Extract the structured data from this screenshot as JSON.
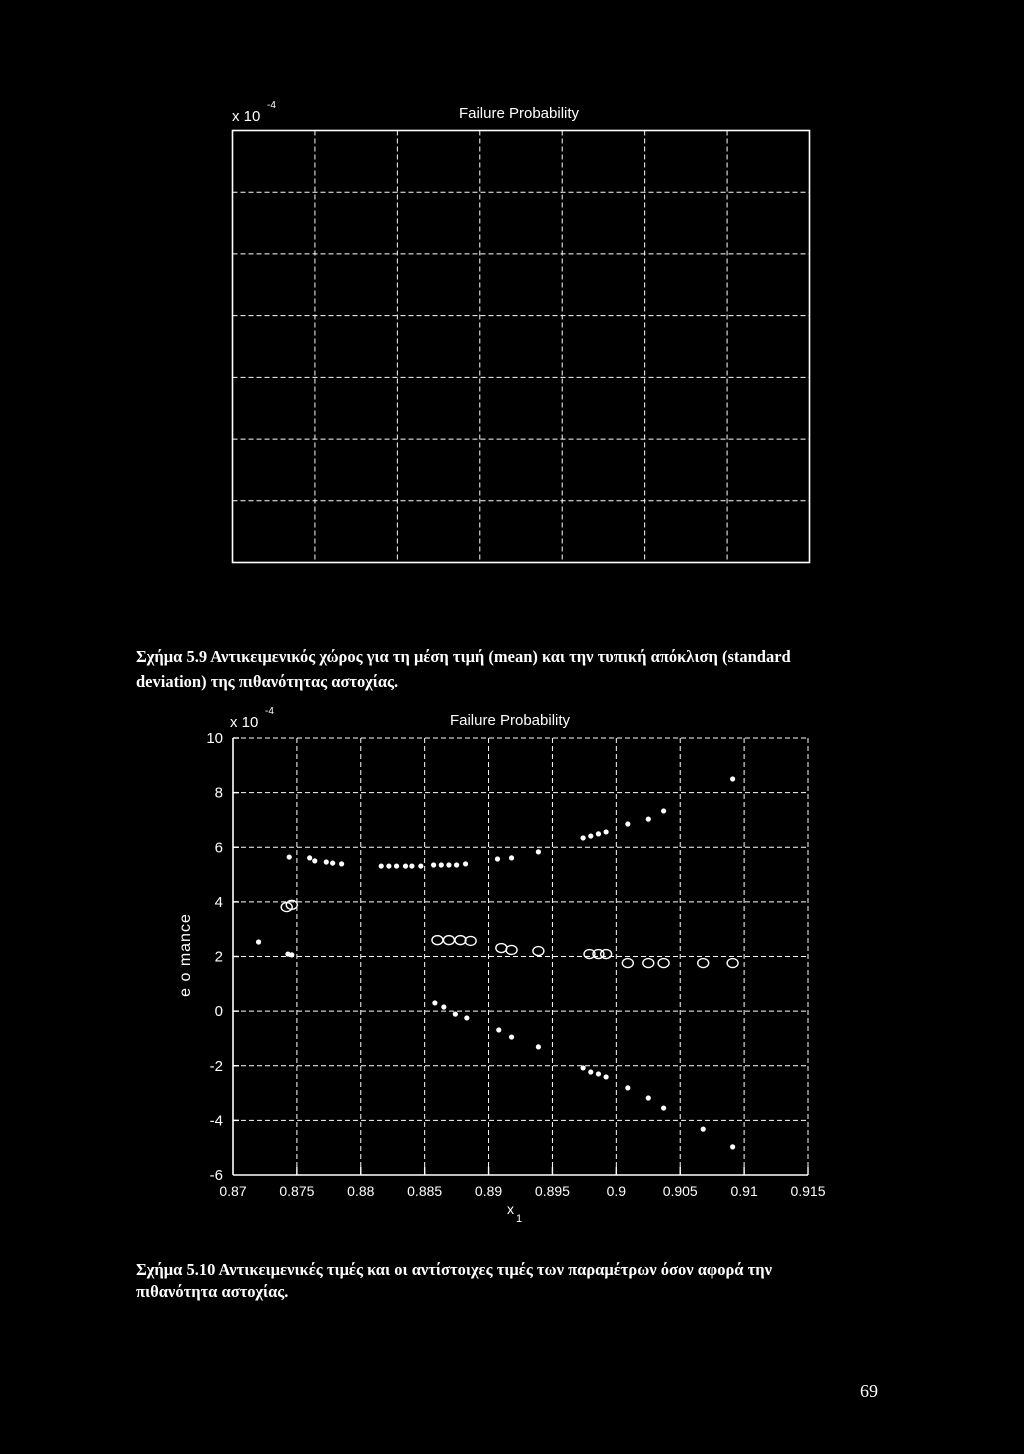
{
  "colors": {
    "background": "#000000",
    "foreground": "#ffffff"
  },
  "page_number": "69",
  "figures": [
    {
      "caption_lines": [
        "Σχήμα 5.9 Αντικειμενικός χώρος για τη μέση τιμή (mean) και την τυπική απόκλιση (standard",
        "deviation) της πιθανότητας αστοχίας."
      ]
    },
    {
      "caption_lines": [
        "Σχήμα 5.10 Αντικειμενικές τιμές και οι αντίστοιχες τιμές των παραμέτρων όσον αφορά την",
        "πιθανότητα αστοχίας."
      ]
    }
  ],
  "chart_data": [
    {
      "type": "scatter",
      "title": "Failure Probability",
      "multiplier": "x 10",
      "multiplier_exponent": "-4",
      "grid": true,
      "series": []
    },
    {
      "type": "scatter",
      "title": "Failure Probability",
      "multiplier": "x 10",
      "multiplier_exponent": "-4",
      "xlabel": "x",
      "xlabel_subscript": "1",
      "ylabel": "e o mance",
      "xlim": [
        0.87,
        0.915
      ],
      "ylim": [
        -6,
        10
      ],
      "xticks": [
        "0.87",
        "0.875",
        "0.88",
        "0.885",
        "0.89",
        "0.895",
        "0.9",
        "0.905",
        "0.91",
        "0.915"
      ],
      "yticks": [
        "10",
        "8",
        "6",
        "4",
        "2",
        "0",
        "-2",
        "-4",
        "-6"
      ],
      "grid": true,
      "series": [
        {
          "marker": "dot",
          "points": [
            [
              0.8744,
              5.64
            ],
            [
              0.876,
              5.61
            ],
            [
              0.8764,
              5.5
            ],
            [
              0.8773,
              5.46
            ],
            [
              0.8778,
              5.42
            ],
            [
              0.8785,
              5.39
            ],
            [
              0.8816,
              5.31
            ],
            [
              0.8822,
              5.31
            ],
            [
              0.8828,
              5.31
            ],
            [
              0.8835,
              5.31
            ],
            [
              0.884,
              5.31
            ],
            [
              0.8847,
              5.31
            ],
            [
              0.8857,
              5.35
            ],
            [
              0.8863,
              5.35
            ],
            [
              0.8869,
              5.35
            ],
            [
              0.8875,
              5.35
            ],
            [
              0.8882,
              5.39
            ],
            [
              0.8907,
              5.57
            ],
            [
              0.8918,
              5.61
            ],
            [
              0.8939,
              5.83
            ],
            [
              0.8974,
              6.34
            ],
            [
              0.898,
              6.41
            ],
            [
              0.8986,
              6.49
            ],
            [
              0.8992,
              6.56
            ],
            [
              0.9009,
              6.85
            ],
            [
              0.9025,
              7.03
            ],
            [
              0.9037,
              7.33
            ],
            [
              0.9091,
              8.5
            ]
          ]
        },
        {
          "marker": "circle",
          "points": [
            [
              0.8742,
              3.81
            ],
            [
              0.8746,
              3.89
            ],
            [
              0.886,
              2.6
            ],
            [
              0.8869,
              2.6
            ],
            [
              0.8878,
              2.6
            ],
            [
              0.8886,
              2.57
            ],
            [
              0.891,
              2.31
            ],
            [
              0.8918,
              2.24
            ],
            [
              0.8939,
              2.2
            ],
            [
              0.8979,
              2.09
            ],
            [
              0.8986,
              2.09
            ],
            [
              0.8992,
              2.09
            ],
            [
              0.9009,
              1.76
            ],
            [
              0.9025,
              1.76
            ],
            [
              0.9037,
              1.76
            ],
            [
              0.9068,
              1.76
            ],
            [
              0.9091,
              1.76
            ]
          ]
        },
        {
          "marker": "dot",
          "points": [
            [
              0.872,
              2.53
            ],
            [
              0.8743,
              2.09
            ],
            [
              0.8746,
              2.06
            ],
            [
              0.8858,
              0.3
            ],
            [
              0.8865,
              0.15
            ],
            [
              0.8874,
              -0.11
            ],
            [
              0.8883,
              -0.25
            ],
            [
              0.8908,
              -0.69
            ],
            [
              0.8918,
              -0.95
            ],
            [
              0.8939,
              -1.31
            ],
            [
              0.8974,
              -2.08
            ],
            [
              0.898,
              -2.23
            ],
            [
              0.8986,
              -2.3
            ],
            [
              0.8992,
              -2.41
            ],
            [
              0.9009,
              -2.81
            ],
            [
              0.9025,
              -3.18
            ],
            [
              0.9037,
              -3.55
            ],
            [
              0.9068,
              -4.32
            ],
            [
              0.9091,
              -4.97
            ]
          ]
        }
      ]
    }
  ]
}
